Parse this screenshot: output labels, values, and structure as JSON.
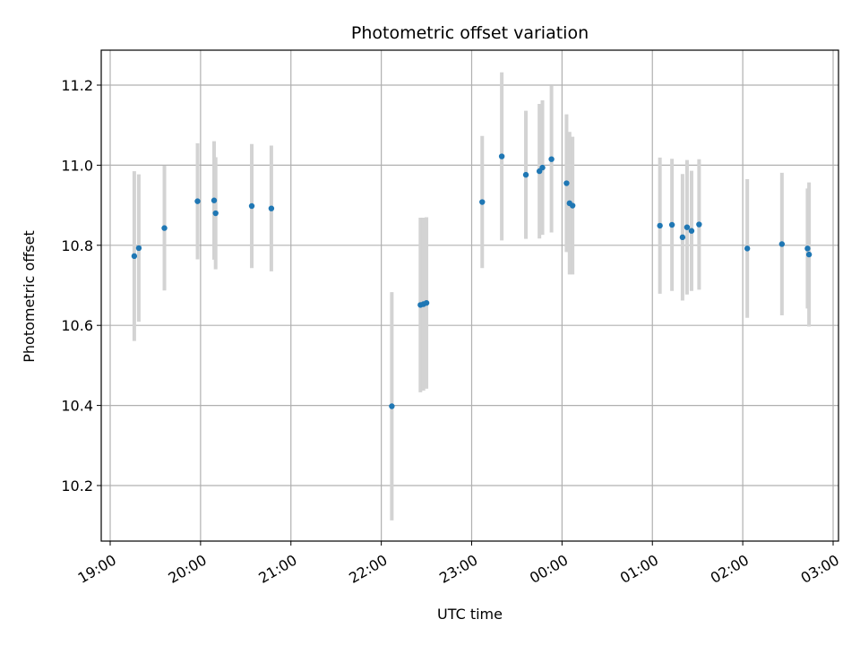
{
  "chart_data": {
    "type": "scatter",
    "title": "Photometric offset variation",
    "xlabel": "UTC time",
    "ylabel": "Photometric offset",
    "x_ticks": [
      "19:00",
      "20:00",
      "21:00",
      "22:00",
      "23:00",
      "00:00",
      "01:00",
      "02:00",
      "03:00"
    ],
    "y_ticks": [
      "10.2",
      "10.4",
      "10.6",
      "10.8",
      "11.0",
      "11.2"
    ],
    "ylim": [
      10.06,
      11.29
    ],
    "xlim": [
      "19:00",
      "03:00"
    ],
    "grid": true,
    "colors": {
      "points": "#1f77b4",
      "errorbars": "#d3d3d3",
      "grid": "#b0b0b0"
    },
    "points": [
      {
        "t": "19:16",
        "y": 10.773,
        "err": 0.212
      },
      {
        "t": "19:19",
        "y": 10.793,
        "err": 0.184
      },
      {
        "t": "19:36",
        "y": 10.843,
        "err": 0.156
      },
      {
        "t": "19:58",
        "y": 10.91,
        "err": 0.145
      },
      {
        "t": "20:09",
        "y": 10.912,
        "err": 0.148
      },
      {
        "t": "20:10",
        "y": 10.88,
        "err": 0.14
      },
      {
        "t": "20:34",
        "y": 10.898,
        "err": 0.155
      },
      {
        "t": "20:47",
        "y": 10.892,
        "err": 0.157
      },
      {
        "t": "22:07",
        "y": 10.398,
        "err": 0.285
      },
      {
        "t": "22:26",
        "y": 10.651,
        "err": 0.218
      },
      {
        "t": "22:28",
        "y": 10.653,
        "err": 0.216
      },
      {
        "t": "22:30",
        "y": 10.656,
        "err": 0.214
      },
      {
        "t": "23:07",
        "y": 10.908,
        "err": 0.165
      },
      {
        "t": "23:20",
        "y": 11.022,
        "err": 0.21
      },
      {
        "t": "23:36",
        "y": 10.976,
        "err": 0.16
      },
      {
        "t": "23:45",
        "y": 10.985,
        "err": 0.168
      },
      {
        "t": "23:47",
        "y": 10.994,
        "err": 0.168
      },
      {
        "t": "23:53",
        "y": 11.015,
        "err": 0.183
      },
      {
        "t": "00:03",
        "y": 10.955,
        "err": 0.172
      },
      {
        "t": "00:05",
        "y": 10.905,
        "err": 0.178
      },
      {
        "t": "00:07",
        "y": 10.899,
        "err": 0.172
      },
      {
        "t": "01:05",
        "y": 10.849,
        "err": 0.17
      },
      {
        "t": "01:13",
        "y": 10.851,
        "err": 0.165
      },
      {
        "t": "01:20",
        "y": 10.82,
        "err": 0.158
      },
      {
        "t": "01:23",
        "y": 10.845,
        "err": 0.168
      },
      {
        "t": "01:26",
        "y": 10.836,
        "err": 0.15
      },
      {
        "t": "01:31",
        "y": 10.852,
        "err": 0.163
      },
      {
        "t": "02:03",
        "y": 10.792,
        "err": 0.173
      },
      {
        "t": "02:26",
        "y": 10.803,
        "err": 0.178
      },
      {
        "t": "02:43",
        "y": 10.792,
        "err": 0.15
      },
      {
        "t": "02:44",
        "y": 10.777,
        "err": 0.18
      }
    ]
  }
}
